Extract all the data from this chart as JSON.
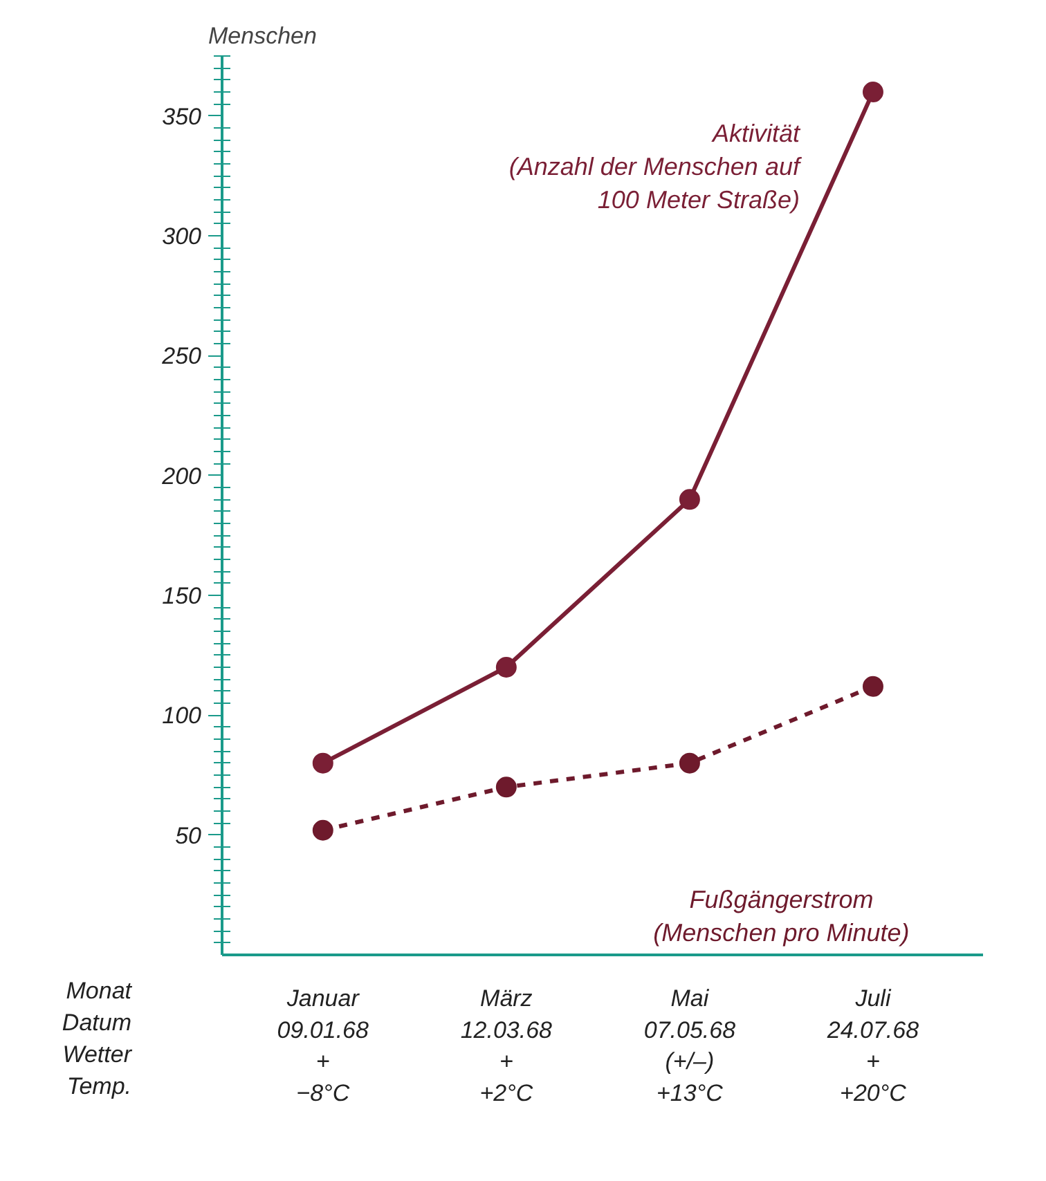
{
  "chart_data": {
    "type": "line",
    "ylabel": "Menschen",
    "categories": [
      "Januar\n09.01.68\n+\n−8°C",
      "März\n12.03.68\n+\n+2°C",
      "Mai\n07.05.68\n(+/–)\n+13°C",
      "Juli\n24.07.68\n+\n+20°C"
    ],
    "series": [
      {
        "name": "Aktivität\n(Anzahl der Menschen auf\n100 Meter Straße)",
        "color": "#7a1f35",
        "line_style": "solid",
        "values": [
          80,
          120,
          190,
          360
        ]
      },
      {
        "name": "Fußgängerstrom\n(Menschen pro Minute)",
        "color": "#6e1a2c",
        "line_style": "dashed",
        "values": [
          52,
          70,
          80,
          112
        ]
      }
    ],
    "ylim": [
      0,
      375
    ],
    "yticks": [
      50,
      100,
      150,
      200,
      250,
      300,
      350
    ],
    "annotations": [
      "Monat\nDatum\nWetter\nTemp."
    ],
    "grid": false,
    "legend": false,
    "marker": "circle"
  }
}
